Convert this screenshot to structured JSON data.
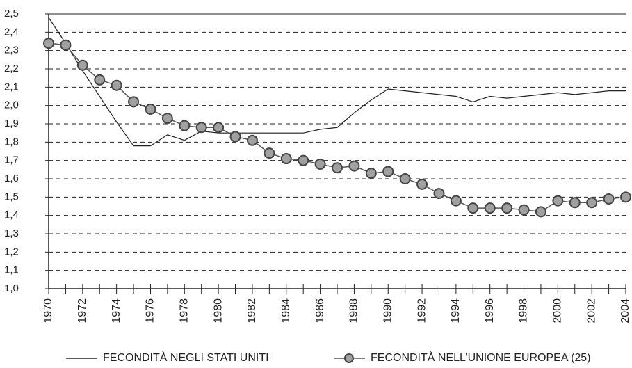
{
  "chart_data": {
    "type": "line",
    "categories": [
      "1970",
      null,
      "1972",
      null,
      "1974",
      null,
      "1976",
      null,
      "1978",
      null,
      "1980",
      null,
      "1982",
      null,
      "1984",
      null,
      "1986",
      null,
      "1988",
      null,
      "1990",
      null,
      "1992",
      null,
      "1994",
      null,
      "1996",
      null,
      "1998",
      null,
      "2000",
      null,
      "2002",
      null,
      "2004"
    ],
    "series": [
      {
        "name": "FECONDITÀ NEGLI STATI UNITI",
        "color": "#222222",
        "values": [
          2.48,
          2.34,
          2.19,
          2.05,
          1.91,
          1.78,
          1.78,
          1.84,
          1.81,
          1.86,
          1.85,
          1.85,
          1.85,
          1.85,
          1.85,
          1.85,
          1.87,
          1.88,
          1.96,
          2.03,
          2.09,
          2.08,
          2.07,
          2.06,
          2.05,
          2.02,
          2.05,
          2.04,
          2.05,
          2.06,
          2.07,
          2.06,
          2.07,
          2.08,
          2.08
        ]
      },
      {
        "name": "FECONDITÀ NELL’UNIONE EUROPEA (25)",
        "color": "#a0a0a0",
        "marker": "circle",
        "values": [
          2.34,
          2.33,
          2.22,
          2.14,
          2.11,
          2.02,
          1.98,
          1.93,
          1.89,
          1.88,
          1.88,
          1.83,
          1.81,
          1.74,
          1.71,
          1.7,
          1.68,
          1.66,
          1.67,
          1.63,
          1.64,
          1.6,
          1.57,
          1.52,
          1.48,
          1.44,
          1.44,
          1.44,
          1.43,
          1.42,
          1.48,
          1.47,
          1.47,
          1.49,
          1.5
        ]
      }
    ],
    "ylim": [
      1.0,
      2.5
    ],
    "yticks": [
      {
        "value": 1.0,
        "label": "1,0"
      },
      {
        "value": 1.1,
        "label": "1,1"
      },
      {
        "value": 1.2,
        "label": "1,2"
      },
      {
        "value": 1.3,
        "label": "1,3"
      },
      {
        "value": 1.4,
        "label": "1,4"
      },
      {
        "value": 1.5,
        "label": "1,5"
      },
      {
        "value": 1.6,
        "label": "1,6"
      },
      {
        "value": 1.7,
        "label": "1,7"
      },
      {
        "value": 1.8,
        "label": "1,8"
      },
      {
        "value": 1.9,
        "label": "1,9"
      },
      {
        "value": 2.0,
        "label": "2,0"
      },
      {
        "value": 2.1,
        "label": "2,1"
      },
      {
        "value": 2.2,
        "label": "2,2"
      },
      {
        "value": 2.3,
        "label": "2,3"
      },
      {
        "value": 2.4,
        "label": "2,4"
      },
      {
        "value": 2.5,
        "label": "2,5"
      }
    ],
    "grid": true,
    "legend": "bottom"
  }
}
